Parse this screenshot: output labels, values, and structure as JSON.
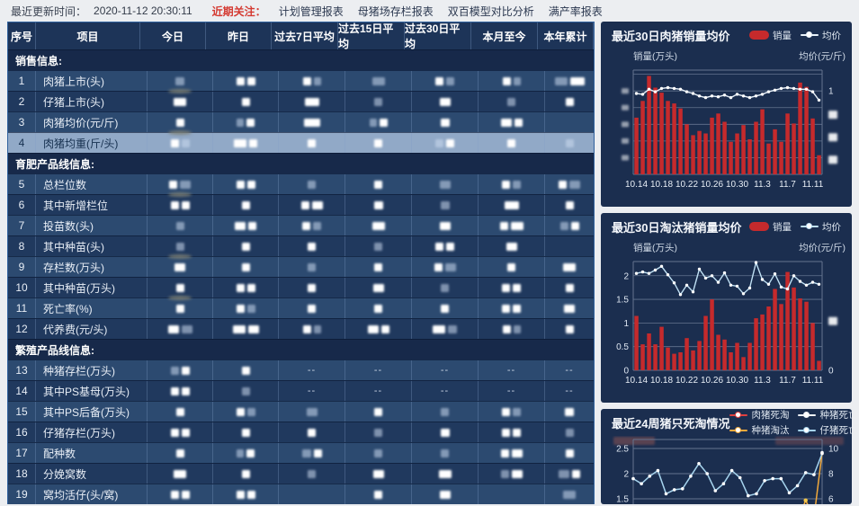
{
  "topbar": {
    "update_label": "最近更新时间：",
    "update_time": "2020-11-12 20:30:11",
    "focus_label": "近期关注：",
    "links": [
      "计划管理报表",
      "母猪场存栏报表",
      "双百模型对比分析",
      "满产率报表"
    ]
  },
  "table": {
    "columns": [
      "序号",
      "项目",
      "今日",
      "昨日",
      "过去7日平均",
      "过去15日平均",
      "过去30日平均",
      "本月至今",
      "本年累计"
    ],
    "sections": [
      {
        "header": "销售信息:",
        "rows": [
          {
            "no": "1",
            "item": "肉猪上市(头)",
            "cells": [
              "f10",
              "b9 b9",
              "b9 f8",
              "f14",
              "b9 f9",
              "b9 f8",
              "f14 b16"
            ]
          },
          {
            "no": "2",
            "item": "仔猪上市(头)",
            "cells": [
              "o b14",
              "b9",
              "b16",
              "f9",
              "b12",
              "f9",
              "b9"
            ]
          },
          {
            "no": "3",
            "item": "肉猪均价(元/斤)",
            "cells": [
              "b9",
              "f8 b9",
              "b18",
              "f8 b9",
              "b10",
              "b12 b9",
              ""
            ]
          },
          {
            "no": "4",
            "item": "肉猪均重(斤/头)",
            "highlight": true,
            "cells": [
              "o b9 f9",
              "b14 b9",
              "b9",
              "b9",
              "f9 b9",
              "b9",
              "f9"
            ]
          }
        ]
      },
      {
        "header": "育肥产品线信息:",
        "rows": [
          {
            "no": "5",
            "item": "总栏位数",
            "cells": [
              "b9 f12",
              "b9 b9",
              "f9",
              "b9",
              "f12",
              "b9 f9",
              "b9 f12"
            ]
          },
          {
            "no": "6",
            "item": "其中新增栏位",
            "cells": [
              "o b9 b9",
              "b9",
              "b9 b12",
              "b10",
              "f10",
              "b16",
              "b9"
            ]
          },
          {
            "no": "7",
            "item": "投苗数(头)",
            "cells": [
              "f9",
              "b12 b9",
              "b9 f9",
              "b14",
              "b12",
              "b9 b14",
              "f9 b9"
            ]
          },
          {
            "no": "8",
            "item": "其中种苗(头)",
            "cells": [
              "f9",
              "b9",
              "b9",
              "f9",
              "b9 b9",
              "b12",
              ""
            ]
          },
          {
            "no": "9",
            "item": "存栏数(万头)",
            "cells": [
              "o b12",
              "b9",
              "f9",
              "b9",
              "b9 f12",
              "b9",
              "b14"
            ]
          },
          {
            "no": "10",
            "item": "其中种苗(万头)",
            "cells": [
              "b9",
              "b9 b9",
              "b9",
              "b12",
              "f9",
              "b9 b9",
              "b9"
            ]
          },
          {
            "no": "11",
            "item": "死亡率(%)",
            "cells": [
              "o b9",
              "b9 f9",
              "b9",
              "b9",
              "b9",
              "b9 b9",
              "b12"
            ]
          },
          {
            "no": "12",
            "item": "代养费(元/头)",
            "cells": [
              "b12 f12",
              "b14 b12",
              "b9 f8",
              "b12 b9",
              "b14 f10",
              "b9 f8",
              "b9"
            ]
          }
        ]
      },
      {
        "header": "繁殖产品线信息:",
        "rows": [
          {
            "no": "13",
            "item": "种猪存栏(万头)",
            "cells": [
              "f9 b9",
              "b9",
              "--",
              "--",
              "--",
              "--",
              "--"
            ]
          },
          {
            "no": "14",
            "item": "其中PS基母(万头)",
            "cells": [
              "b9 b9",
              "f9",
              "--",
              "--",
              "--",
              "--",
              "--"
            ]
          },
          {
            "no": "15",
            "item": "其中PS后备(万头)",
            "cells": [
              "b9",
              "b9 f9",
              "f12",
              "b9",
              "f9",
              "b9 f9",
              "b10"
            ]
          },
          {
            "no": "16",
            "item": "仔猪存栏(万头)",
            "cells": [
              "b9 b9",
              "b9",
              "b9",
              "f9",
              "b10",
              "b9 b9",
              "f9"
            ]
          },
          {
            "no": "17",
            "item": "配种数",
            "cells": [
              "b9",
              "f8 b9",
              "f10 b9",
              "f9",
              "f9",
              "b9 b12",
              "b9"
            ]
          },
          {
            "no": "18",
            "item": "分娩窝数",
            "cells": [
              "b14",
              "b9",
              "f9",
              "b12",
              "b14",
              "f9 b12",
              "f12 b9"
            ]
          },
          {
            "no": "19",
            "item": "窝均活仔(头/窝)",
            "cells": [
              "b9 b9",
              "b9 b9",
              "",
              "b9",
              "b12",
              "",
              "f14"
            ]
          }
        ]
      }
    ]
  },
  "charts": [
    {
      "title": "最近30日肉猪销量均价",
      "legend": [
        {
          "label": "销量",
          "type": "bar",
          "color": "#c62a2c"
        },
        {
          "label": "均价",
          "type": "line",
          "color": "#e9f2fa"
        }
      ],
      "unit_left": "销量(万头)",
      "unit_right": "均价(元/斤)",
      "chart_data": {
        "type": "bar+line",
        "x_labels": [
          "10.14",
          "10.18",
          "10.22",
          "10.26",
          "10.30",
          "11.3",
          "11.7",
          "11.11"
        ],
        "ylim": [
          0,
          1.25
        ],
        "grid_step": 0.2,
        "bar_color": "#c62a2c",
        "line_color": "#e9f2fa",
        "bars": [
          0.68,
          0.88,
          1.18,
          1.04,
          0.98,
          0.88,
          0.85,
          0.79,
          0.6,
          0.47,
          0.52,
          0.49,
          0.68,
          0.73,
          0.63,
          0.39,
          0.49,
          0.59,
          0.42,
          0.63,
          0.78,
          0.37,
          0.54,
          0.39,
          0.73,
          0.61,
          1.1,
          1.05,
          0.67,
          0.23
        ],
        "line": [
          0.97,
          0.96,
          1.02,
          0.99,
          1.03,
          1.04,
          1.03,
          1.02,
          0.99,
          0.97,
          0.94,
          0.92,
          0.94,
          0.93,
          0.95,
          0.92,
          0.96,
          0.94,
          0.92,
          0.94,
          0.96,
          0.99,
          1.01,
          1.03,
          1.04,
          1.03,
          1.02,
          1.02,
          0.99,
          0.89
        ],
        "left_ticks": [
          {
            "blur": true,
            "v": 1.0
          },
          {
            "blur": true,
            "v": 0.8
          },
          {
            "blur": true,
            "v": 0.6
          },
          {
            "blur": true,
            "v": 0.4
          },
          {
            "blur": true,
            "v": 0.2
          }
        ],
        "right_ticks": [
          {
            "label": "1",
            "v": 1.0
          },
          {
            "blur": true,
            "v": 0.72
          },
          {
            "blur": true,
            "v": 0.45
          },
          {
            "blur": true,
            "v": 0.18
          }
        ]
      }
    },
    {
      "title": "最近30日淘汰猪销量均价",
      "legend": [
        {
          "label": "销量",
          "type": "bar",
          "color": "#c62a2c"
        },
        {
          "label": "均价",
          "type": "line",
          "color": "#bfe0f4"
        }
      ],
      "unit_left": "销量(万头)",
      "unit_right": "均价(元/斤)",
      "chart_data": {
        "type": "bar+line",
        "x_labels": [
          "10.14",
          "10.18",
          "10.22",
          "10.26",
          "10.30",
          "11.3",
          "11.7",
          "11.11"
        ],
        "ylim": [
          0,
          2.3
        ],
        "grid_step": 0.5,
        "bar_color": "#c62a2c",
        "line_color": "#bfe0f4",
        "bars": [
          1.15,
          0.55,
          0.78,
          0.55,
          0.92,
          0.48,
          0.35,
          0.38,
          0.68,
          0.42,
          0.62,
          1.15,
          1.5,
          0.75,
          0.65,
          0.38,
          0.58,
          0.28,
          0.58,
          1.1,
          1.18,
          1.35,
          1.72,
          1.4,
          2.08,
          1.75,
          1.52,
          1.45,
          1.0,
          0.2
        ],
        "line": [
          2.05,
          2.08,
          2.05,
          2.12,
          2.2,
          2.02,
          1.85,
          1.6,
          1.8,
          1.66,
          2.14,
          1.95,
          2.0,
          1.86,
          2.06,
          1.8,
          1.78,
          1.62,
          1.74,
          2.28,
          1.92,
          1.82,
          2.04,
          1.76,
          1.72,
          2.0,
          1.88,
          1.8,
          1.86,
          1.82
        ],
        "left_ticks": [
          {
            "label": "2",
            "v": 2
          },
          {
            "label": "1.5",
            "v": 1.5
          },
          {
            "label": "1",
            "v": 1
          },
          {
            "label": "0.5",
            "v": 0.5
          },
          {
            "label": "0",
            "v": 0
          }
        ],
        "right_ticks": [
          {
            "blur": true,
            "v": 1.05
          },
          {
            "label": "0",
            "v": 0
          }
        ]
      }
    },
    {
      "title": "最近24周猪只死淘情况",
      "legend": [
        {
          "label": "肉猪死淘",
          "type": "line",
          "color": "#e04040"
        },
        {
          "label": "种猪死亡",
          "type": "line",
          "color": "#f0f4f8"
        },
        {
          "label": "种猪淘汰",
          "type": "line",
          "color": "#f2a93b"
        },
        {
          "label": "仔猪死亡",
          "type": "line",
          "color": "#a6d4ee"
        }
      ],
      "unit_left_redacted": true,
      "unit_right_redacted": true,
      "chart_data": {
        "type": "line",
        "grid_vals": [
          2.5,
          2.0,
          1.5
        ],
        "ylim_visible": [
          1.45,
          2.6
        ],
        "series": [
          {
            "name": "仔猪死亡",
            "color": "#a6d4ee",
            "values": [
              1.9,
              1.8,
              1.95,
              2.06,
              1.6,
              1.68,
              1.7,
              1.95,
              2.2,
              2.0,
              1.66,
              1.8,
              2.06,
              1.92,
              1.56,
              1.6,
              1.86,
              1.9,
              1.9,
              1.62,
              1.76,
              2.02,
              1.98,
              2.4
            ]
          },
          {
            "name": "种猪淘汰",
            "color": "#f2a93b",
            "values": [
              1.05,
              1.05,
              1.05,
              1.05,
              1.05,
              1.05,
              1.05,
              1.05,
              1.05,
              1.05,
              1.05,
              1.05,
              1.05,
              1.05,
              1.05,
              1.05,
              1.05,
              1.05,
              1.05,
              1.05,
              1.05,
              1.47,
              1.12,
              2.42
            ]
          }
        ],
        "extra_dot": {
          "x": 21,
          "v": 1.47,
          "color": "#f2c64b"
        },
        "left_ticks": [
          {
            "label": "2.5",
            "v": 2.5
          },
          {
            "label": "2",
            "v": 2
          },
          {
            "label": "1.5",
            "v": 1.5
          }
        ],
        "right_ticks": [
          {
            "label": "10",
            "v": 2.5
          },
          {
            "label": "8",
            "v": 2
          },
          {
            "label": "6",
            "v": 1.5
          }
        ]
      }
    }
  ]
}
